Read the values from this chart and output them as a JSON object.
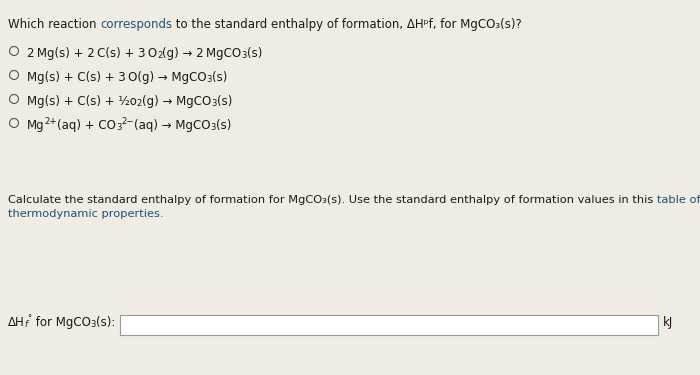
{
  "bg_color": "#f0ece4",
  "text_color": "#1a1a1a",
  "link_color": "#1a5276",
  "box_color": "#ffffff",
  "box_border": "#999999",
  "circle_color": "#555555",
  "font_size": 8.5,
  "font_size_small": 8.2,
  "title_part1": "Which reaction ",
  "title_corresponds": "corresponds",
  "title_part2": " to the standard enthalpy of formation, ΔHᵖf, for MgCO₃(s)?",
  "opt1": "2 Mg(s) + 2 C(s) + 3 O",
  "opt1b": "2",
  "opt1c": "(g) → 2 MgCO",
  "opt1d": "3",
  "opt1e": "(s)",
  "opt2": "Mg(s) + C(s) + 3 O(g) → MgCO",
  "opt2b": "3",
  "opt2c": "(s)",
  "opt3": "Mg(s) + C(s) + ½o",
  "opt3b": "2",
  "opt3c": "(g) → MgCO",
  "opt3d": "3",
  "opt3e": "(s)",
  "opt4": "Mg",
  "opt4b": "2+",
  "opt4c": "(aq) + CO",
  "opt4d": "3",
  "opt4e": "2−",
  "opt4f": "(aq) → MgCO",
  "opt4g": "3",
  "opt4h": "(s)",
  "calc1": "Calculate the standard enthalpy of formation for MgCO₃(s). Use the standard enthalpy of formation values in this ",
  "calc_link": "table of",
  "calc2": "thermodynamic properties.",
  "label1": "ΔH",
  "label2": "f",
  "label3": "◦",
  "label4": " for MgCO",
  "label5": "3",
  "label6": "(s):",
  "unit": "kJ"
}
